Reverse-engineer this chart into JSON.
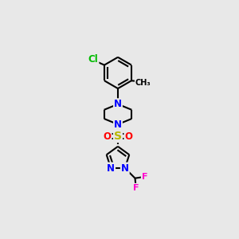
{
  "background_color": "#e8e8e8",
  "bond_color": "#000000",
  "N_color": "#0000ff",
  "S_color": "#b8b800",
  "O_color": "#ff0000",
  "Cl_color": "#00bb00",
  "F_color": "#ff00cc",
  "C_color": "#000000",
  "line_width": 1.5,
  "dbo": 0.012,
  "font_size": 8.5,
  "fig_width": 3.0,
  "fig_height": 3.0,
  "dpi": 100,
  "xlim": [
    0,
    1
  ],
  "ylim": [
    0,
    1
  ]
}
